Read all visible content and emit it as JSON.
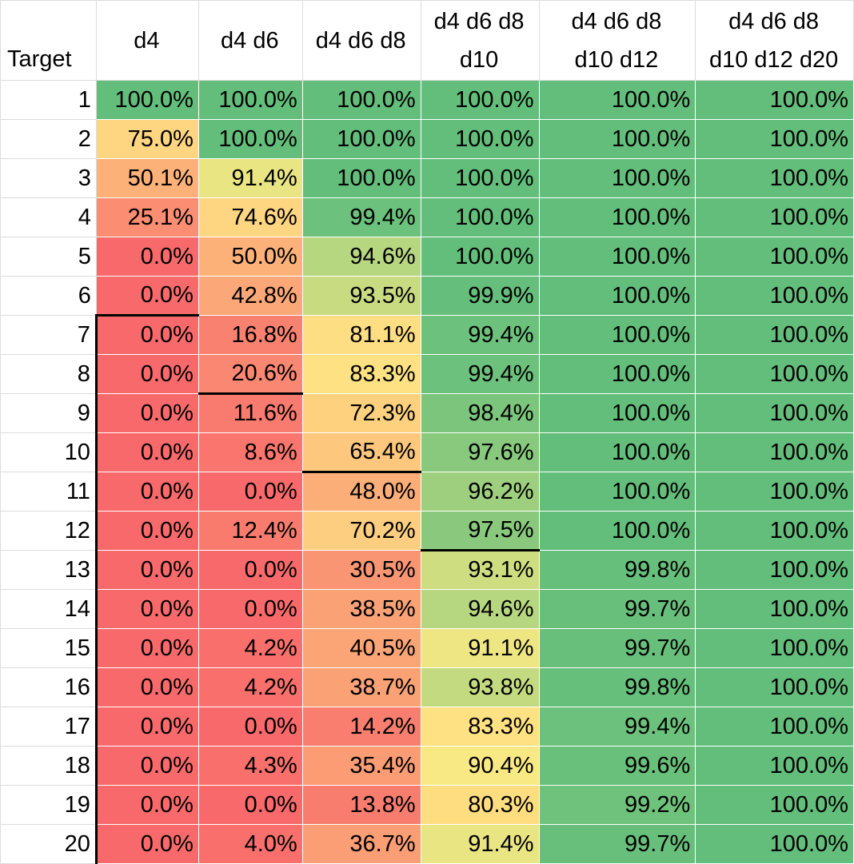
{
  "chart_data": {
    "type": "heatmap",
    "corner_label": "Target",
    "columns": [
      [
        "d4"
      ],
      [
        "d4 d6"
      ],
      [
        "d4 d6 d8"
      ],
      [
        "d4 d6 d8",
        "d10"
      ],
      [
        "d4 d6 d8",
        "d10 d12"
      ],
      [
        "d4 d6 d8",
        "d10 d12 d20"
      ]
    ],
    "rows": [
      "1",
      "2",
      "3",
      "4",
      "5",
      "6",
      "7",
      "8",
      "9",
      "10",
      "11",
      "12",
      "13",
      "14",
      "15",
      "16",
      "17",
      "18",
      "19",
      "20"
    ],
    "values": [
      [
        100.0,
        100.0,
        100.0,
        100.0,
        100.0,
        100.0
      ],
      [
        75.0,
        100.0,
        100.0,
        100.0,
        100.0,
        100.0
      ],
      [
        50.1,
        91.4,
        100.0,
        100.0,
        100.0,
        100.0
      ],
      [
        25.1,
        74.6,
        99.4,
        100.0,
        100.0,
        100.0
      ],
      [
        0.0,
        50.0,
        94.6,
        100.0,
        100.0,
        100.0
      ],
      [
        0.0,
        42.8,
        93.5,
        99.9,
        100.0,
        100.0
      ],
      [
        0.0,
        16.8,
        81.1,
        99.4,
        100.0,
        100.0
      ],
      [
        0.0,
        20.6,
        83.3,
        99.4,
        100.0,
        100.0
      ],
      [
        0.0,
        11.6,
        72.3,
        98.4,
        100.0,
        100.0
      ],
      [
        0.0,
        8.6,
        65.4,
        97.6,
        100.0,
        100.0
      ],
      [
        0.0,
        0.0,
        48.0,
        96.2,
        100.0,
        100.0
      ],
      [
        0.0,
        12.4,
        70.2,
        97.5,
        100.0,
        100.0
      ],
      [
        0.0,
        0.0,
        30.5,
        93.1,
        99.8,
        100.0
      ],
      [
        0.0,
        0.0,
        38.5,
        94.6,
        99.7,
        100.0
      ],
      [
        0.0,
        4.2,
        40.5,
        91.1,
        99.7,
        100.0
      ],
      [
        0.0,
        4.2,
        38.7,
        93.8,
        99.8,
        100.0
      ],
      [
        0.0,
        0.0,
        14.2,
        83.3,
        99.4,
        100.0
      ],
      [
        0.0,
        4.3,
        35.4,
        90.4,
        99.6,
        100.0
      ],
      [
        0.0,
        0.0,
        13.8,
        80.3,
        99.2,
        100.0
      ],
      [
        0.0,
        4.0,
        36.7,
        91.4,
        99.7,
        100.0
      ]
    ],
    "value_suffix": "%",
    "color_scale": {
      "min": 0,
      "mid": 90,
      "max": 100,
      "colors": [
        "#f8696b",
        "#ffeb84",
        "#63be7b"
      ]
    },
    "boundary": {
      "color": "#000000",
      "column_start_rows": [
        7,
        9,
        11,
        13,
        21,
        21
      ]
    }
  }
}
